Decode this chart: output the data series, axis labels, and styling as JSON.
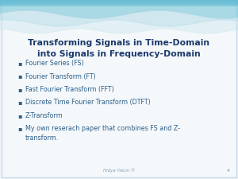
{
  "title_line1": "Transforming Signals in Time-Domain",
  "title_line2": "into Signals in Frequency-Domain",
  "title_color": "#1a3a6b",
  "title_fontsize": 7.8,
  "bullet_items": [
    "Fourier Series (FS)",
    "Fourier Transform (FT)",
    "Fast Fourier Transform (FFT)",
    "Discrete Time Fourier Transform (DTFT)",
    "Z-Transform",
    "My own reserach paper that combines FS and Z-\ntransform."
  ],
  "bullet_color": "#2c5f8a",
  "bullet_fontsize": 5.8,
  "footer_text": "Hidya Yalcin ©",
  "page_num": "4",
  "bg_color": "#eef3f7",
  "slide_bg": "#f5f8fa",
  "wave_color1": "#8ecfdf",
  "wave_color2": "#b8dde8",
  "wave_color3": "#cce8f0",
  "top_bar_color": "#5bb8d0",
  "border_color": "#c8d8e8"
}
